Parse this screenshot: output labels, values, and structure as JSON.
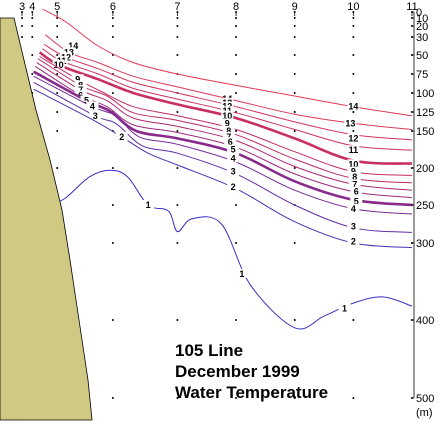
{
  "chart_data": {
    "type": "contour",
    "title_lines": [
      "105 Line",
      "December 1999",
      "Water Temperature"
    ],
    "stations": [
      "3",
      "4",
      "5",
      "6",
      "7",
      "8",
      "9",
      "10",
      "11"
    ],
    "station_x": [
      0,
      0.35,
      1.2,
      3.1,
      5.3,
      7.3,
      9.3,
      11.3,
      13.3
    ],
    "depth_ticks": [
      0,
      10,
      20,
      30,
      50,
      75,
      100,
      125,
      150,
      200,
      250,
      300,
      400,
      500
    ],
    "depth_unit": "(m)",
    "ylim": [
      0,
      500
    ],
    "colors": {
      "coast": "#cfc984",
      "warm": "#e23a55",
      "mid": "#b8286a",
      "cool": "#3a2fc4",
      "grid_dot": "#000000"
    },
    "contours": [
      {
        "value": "14",
        "label_at": [
          [
            1.75,
            40
          ],
          [
            7.0,
            108
          ],
          [
            11.3,
            118
          ]
        ],
        "points": [
          [
            0.7,
            -5
          ],
          [
            1.5,
            15
          ],
          [
            2.6,
            40
          ],
          [
            3.8,
            60
          ],
          [
            5.3,
            75
          ],
          [
            7.3,
            90
          ],
          [
            9.3,
            104
          ],
          [
            11.3,
            118
          ],
          [
            13.3,
            130
          ]
        ]
      },
      {
        "value": "13",
        "label_at": [
          [
            1.6,
            47
          ],
          [
            7.0,
            113
          ],
          [
            11.2,
            140
          ]
        ],
        "points": [
          [
            0.8,
            28
          ],
          [
            1.6,
            47
          ],
          [
            2.6,
            60
          ],
          [
            3.8,
            78
          ],
          [
            5.3,
            92
          ],
          [
            7.3,
            110
          ],
          [
            9.3,
            128
          ],
          [
            11.3,
            140
          ],
          [
            13.3,
            148
          ]
        ]
      },
      {
        "value": "12",
        "label_at": [
          [
            1.5,
            53
          ],
          [
            7.0,
            118
          ],
          [
            11.3,
            160
          ]
        ],
        "points": [
          [
            0.75,
            38
          ],
          [
            1.5,
            53
          ],
          [
            2.6,
            68
          ],
          [
            3.8,
            86
          ],
          [
            5.3,
            100
          ],
          [
            7.3,
            118
          ],
          [
            9.3,
            138
          ],
          [
            11.3,
            155
          ],
          [
            13.3,
            162
          ]
        ]
      },
      {
        "value": "11",
        "label_at": [
          [
            1.35,
            58
          ],
          [
            7.0,
            124
          ],
          [
            11.3,
            176
          ]
        ],
        "points": [
          [
            0.7,
            43
          ],
          [
            1.35,
            58
          ],
          [
            2.6,
            75
          ],
          [
            3.8,
            94
          ],
          [
            5.3,
            108
          ],
          [
            7.3,
            126
          ],
          [
            9.3,
            148
          ],
          [
            11.3,
            170
          ],
          [
            13.3,
            176
          ]
        ]
      },
      {
        "value": "10",
        "label_at": [
          [
            1.25,
            63
          ],
          [
            7.0,
            130
          ],
          [
            11.3,
            195
          ]
        ],
        "points": [
          [
            0.6,
            47
          ],
          [
            1.25,
            63
          ],
          [
            2.6,
            82
          ],
          [
            3.8,
            100
          ],
          [
            5.3,
            115
          ],
          [
            7.3,
            133
          ],
          [
            9.3,
            160
          ],
          [
            11.3,
            190
          ],
          [
            13.3,
            194
          ]
        ]
      },
      {
        "value": "9",
        "label_at": [
          [
            1.9,
            82
          ],
          [
            7.0,
            140
          ],
          [
            11.3,
            205
          ]
        ],
        "points": [
          [
            0.6,
            52
          ],
          [
            1.9,
            82
          ],
          [
            2.7,
            98
          ],
          [
            3.8,
            118
          ],
          [
            5.3,
            130
          ],
          [
            7.3,
            148
          ],
          [
            9.3,
            178
          ],
          [
            11.3,
            205
          ],
          [
            13.3,
            210
          ]
        ]
      },
      {
        "value": "8",
        "label_at": [
          [
            2.0,
            90
          ],
          [
            7.05,
            150
          ],
          [
            11.35,
            212
          ]
        ],
        "points": [
          [
            0.55,
            55
          ],
          [
            2.0,
            90
          ],
          [
            2.9,
            104
          ],
          [
            3.8,
            126
          ],
          [
            5.3,
            136
          ],
          [
            7.3,
            155
          ],
          [
            9.3,
            188
          ],
          [
            11.3,
            214
          ],
          [
            13.3,
            220
          ]
        ]
      },
      {
        "value": "7",
        "label_at": [
          [
            2.0,
            96
          ],
          [
            7.05,
            158
          ],
          [
            11.35,
            222
          ]
        ],
        "points": [
          [
            0.5,
            60
          ],
          [
            2.0,
            96
          ],
          [
            2.9,
            110
          ],
          [
            3.8,
            133
          ],
          [
            5.3,
            144
          ],
          [
            7.3,
            163
          ],
          [
            9.3,
            198
          ],
          [
            11.3,
            222
          ],
          [
            13.3,
            230
          ]
        ]
      },
      {
        "value": "6",
        "label_at": [
          [
            2.0,
            103
          ],
          [
            7.1,
            165
          ],
          [
            11.4,
            232
          ]
        ],
        "points": [
          [
            0.45,
            65
          ],
          [
            2.0,
            103
          ],
          [
            2.9,
            118
          ],
          [
            3.8,
            142
          ],
          [
            5.3,
            152
          ],
          [
            7.3,
            172
          ],
          [
            9.3,
            208
          ],
          [
            11.3,
            232
          ],
          [
            13.3,
            240
          ]
        ]
      },
      {
        "value": "5",
        "label_at": [
          [
            2.2,
            110
          ],
          [
            7.2,
            175
          ],
          [
            11.4,
            245
          ]
        ],
        "points": [
          [
            0.4,
            72
          ],
          [
            2.2,
            110
          ],
          [
            3.0,
            124
          ],
          [
            3.9,
            150
          ],
          [
            5.3,
            160
          ],
          [
            7.3,
            180
          ],
          [
            9.3,
            218
          ],
          [
            11.3,
            243
          ],
          [
            13.3,
            250
          ]
        ]
      },
      {
        "value": "4",
        "label_at": [
          [
            2.4,
            118
          ],
          [
            7.2,
            187
          ],
          [
            11.3,
            255
          ]
        ],
        "points": [
          [
            0.4,
            78
          ],
          [
            2.4,
            118
          ],
          [
            3.2,
            130
          ],
          [
            4.0,
            158
          ],
          [
            5.3,
            168
          ],
          [
            7.3,
            192
          ],
          [
            9.3,
            230
          ],
          [
            11.3,
            255
          ],
          [
            13.3,
            262
          ]
        ]
      },
      {
        "value": "3",
        "label_at": [
          [
            2.5,
            130
          ],
          [
            7.2,
            205
          ],
          [
            11.3,
            278
          ]
        ],
        "points": [
          [
            0.4,
            86
          ],
          [
            2.5,
            130
          ],
          [
            3.2,
            140
          ],
          [
            4.1,
            170
          ],
          [
            5.3,
            180
          ],
          [
            7.3,
            208
          ],
          [
            9.3,
            250
          ],
          [
            11.3,
            280
          ],
          [
            13.3,
            286
          ]
        ]
      },
      {
        "value": "2",
        "label_at": [
          [
            3.4,
            158
          ],
          [
            7.2,
            226
          ],
          [
            11.3,
            298
          ]
        ],
        "points": [
          [
            0.4,
            95
          ],
          [
            2.4,
            135
          ],
          [
            3.4,
            158
          ],
          [
            4.3,
            180
          ],
          [
            5.3,
            196
          ],
          [
            7.3,
            228
          ],
          [
            9.3,
            272
          ],
          [
            11.3,
            300
          ],
          [
            13.3,
            306
          ]
        ]
      },
      {
        "value": "1",
        "label_at": [
          [
            4.3,
            250
          ],
          [
            7.5,
            340
          ],
          [
            11.0,
            385
          ]
        ],
        "points": [
          [
            1.0,
            250
          ],
          [
            1.5,
            240
          ],
          [
            2.3,
            212
          ],
          [
            3.0,
            203
          ],
          [
            3.6,
            212
          ],
          [
            4.3,
            250
          ],
          [
            5.0,
            258
          ],
          [
            5.3,
            285
          ],
          [
            5.8,
            268
          ],
          [
            6.8,
            275
          ],
          [
            7.8,
            355
          ],
          [
            9.3,
            410
          ],
          [
            10.3,
            395
          ],
          [
            11.3,
            378
          ],
          [
            12.3,
            370
          ],
          [
            13.3,
            382
          ]
        ]
      }
    ]
  }
}
